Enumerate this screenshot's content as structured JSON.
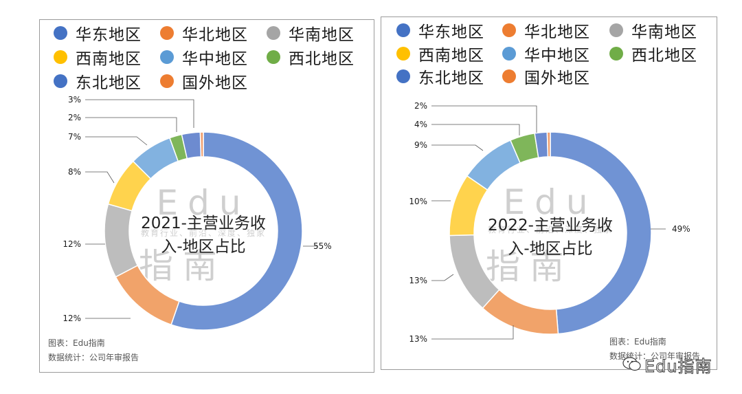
{
  "legend": [
    {
      "label": "华东地区",
      "color": "#4472C4"
    },
    {
      "label": "华北地区",
      "color": "#ED7D31"
    },
    {
      "label": "华南地区",
      "color": "#A5A5A5"
    },
    {
      "label": "西南地区",
      "color": "#FFC000"
    },
    {
      "label": "华中地区",
      "color": "#5B9BD5"
    },
    {
      "label": "西北地区",
      "color": "#70AD47"
    },
    {
      "label": "东北地区",
      "color": "#4472C4"
    },
    {
      "label": "国外地区",
      "color": "#ED7D31"
    }
  ],
  "chart_data": [
    {
      "type": "pie",
      "variant": "donut",
      "title": "2021-主营业务收入-地区占比",
      "categories": [
        "华东地区",
        "华北地区",
        "华南地区",
        "西南地区",
        "华中地区",
        "西北地区",
        "东北地区",
        "国外地区"
      ],
      "values": [
        55,
        12,
        12,
        8,
        7,
        2,
        3,
        0.5
      ],
      "data_labels": [
        "55%",
        "12%",
        "12%",
        "8%",
        "7%",
        "2%",
        "3%",
        ""
      ],
      "colors": [
        "#7093D4",
        "#F1A36A",
        "#BDBDBD",
        "#FFD34D",
        "#82B2E0",
        "#7FB65A",
        "#6D8BD0",
        "#F0A070"
      ],
      "legend_position": "top"
    },
    {
      "type": "pie",
      "variant": "donut",
      "title": "2022-主营业务收入-地区占比",
      "categories": [
        "华东地区",
        "华北地区",
        "华南地区",
        "西南地区",
        "华中地区",
        "西北地区",
        "东北地区",
        "国外地区"
      ],
      "values": [
        49,
        13,
        13,
        10,
        9,
        4,
        2,
        0.5
      ],
      "data_labels": [
        "49%",
        "13%",
        "13%",
        "10%",
        "9%",
        "4%",
        "2%",
        ""
      ],
      "colors": [
        "#7093D4",
        "#F1A36A",
        "#BDBDBD",
        "#FFD34D",
        "#82B2E0",
        "#7FB65A",
        "#6D8BD0",
        "#F0A070"
      ],
      "legend_position": "top"
    }
  ],
  "center_titles": [
    {
      "line1": "2021-主营业务收",
      "line2": "入-地区占比"
    },
    {
      "line1": "2022-主营业务收",
      "line2": "入-地区占比"
    }
  ],
  "watermark": {
    "latin": "Edu",
    "cjk": "指南",
    "small": "教育行业、前沿、深度、独家"
  },
  "footer": {
    "source": "图表：Edu指南",
    "stats": "数据统计：公司年审报告"
  },
  "wechat_mark": {
    "text": "Edu指南",
    "icon": "wechat-icon"
  }
}
